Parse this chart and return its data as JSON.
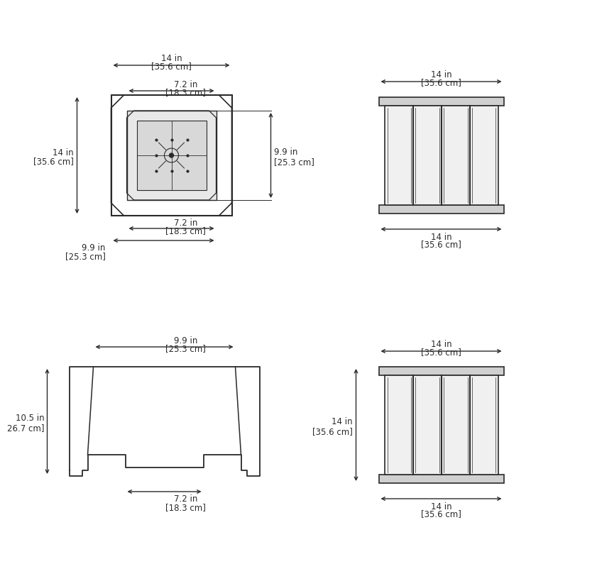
{
  "bg_color": "#ffffff",
  "line_color": "#2a2a2a",
  "text_color": "#2a2a2a",
  "font_size": 8.5,
  "panels": {
    "top_view": {
      "outer_w": "14 in",
      "outer_w_cm": "[35.6 cm]",
      "outer_h": "14 in",
      "outer_h_cm": "[35.6 cm]",
      "inner_w": "7.2 in",
      "inner_w_cm": "[18.3 cm]",
      "inner_h": "9.9 in",
      "inner_h_cm": "[25.3 cm]",
      "bot_w": "7.2 in",
      "bot_w_cm": "[18.3 cm]",
      "bot_h": "9.9 in",
      "bot_h_cm": "[25.3 cm]"
    },
    "front_view_top": {
      "top_w": "14 in",
      "top_w_cm": "[35.6 cm]",
      "bot_w": "14 in",
      "bot_w_cm": "[35.6 cm]"
    },
    "section_view": {
      "top_w": "9.9 in",
      "top_w_cm": "[25.3 cm]",
      "bot_w": "7.2 in",
      "bot_w_cm": "[18.3 cm]",
      "height": "10.5 in",
      "height_cm": "26.7 cm]"
    },
    "front_view_bot": {
      "top_w": "14 in",
      "top_w_cm": "[35.6 cm]",
      "bot_w": "14 in",
      "bot_w_cm": "[35.6 cm]",
      "height": "14 in",
      "height_cm": "[35.6 cm]"
    }
  }
}
